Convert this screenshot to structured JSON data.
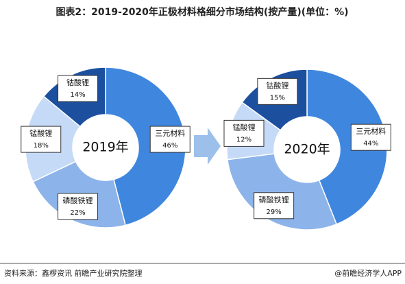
{
  "title": "图表2：2019-2020年正极材料格细分市场结构(按产量)(单位：%)",
  "source": "资料来源：鑫椤资讯 前瞻产业研究院整理",
  "brand": "@前瞻经济学人APP",
  "chart_data": [
    {
      "type": "pie",
      "center_label": "2019年",
      "categories": [
        "三元材料",
        "磷酸铁锂",
        "锰酸锂",
        "钴酸锂"
      ],
      "values": [
        46,
        22,
        18,
        14
      ],
      "value_labels": [
        "46%",
        "22%",
        "18%",
        "14%"
      ],
      "colors": [
        "#3f86de",
        "#8db4ea",
        "#c5daf6",
        "#1c4f9e"
      ]
    },
    {
      "type": "pie",
      "center_label": "2020年",
      "categories": [
        "三元材料",
        "磷酸铁锂",
        "锰酸锂",
        "钴酸锂"
      ],
      "values": [
        44,
        29,
        12,
        15
      ],
      "value_labels": [
        "44%",
        "29%",
        "12%",
        "15%"
      ],
      "colors": [
        "#3f86de",
        "#8db4ea",
        "#c5daf6",
        "#1c4f9e"
      ]
    }
  ]
}
